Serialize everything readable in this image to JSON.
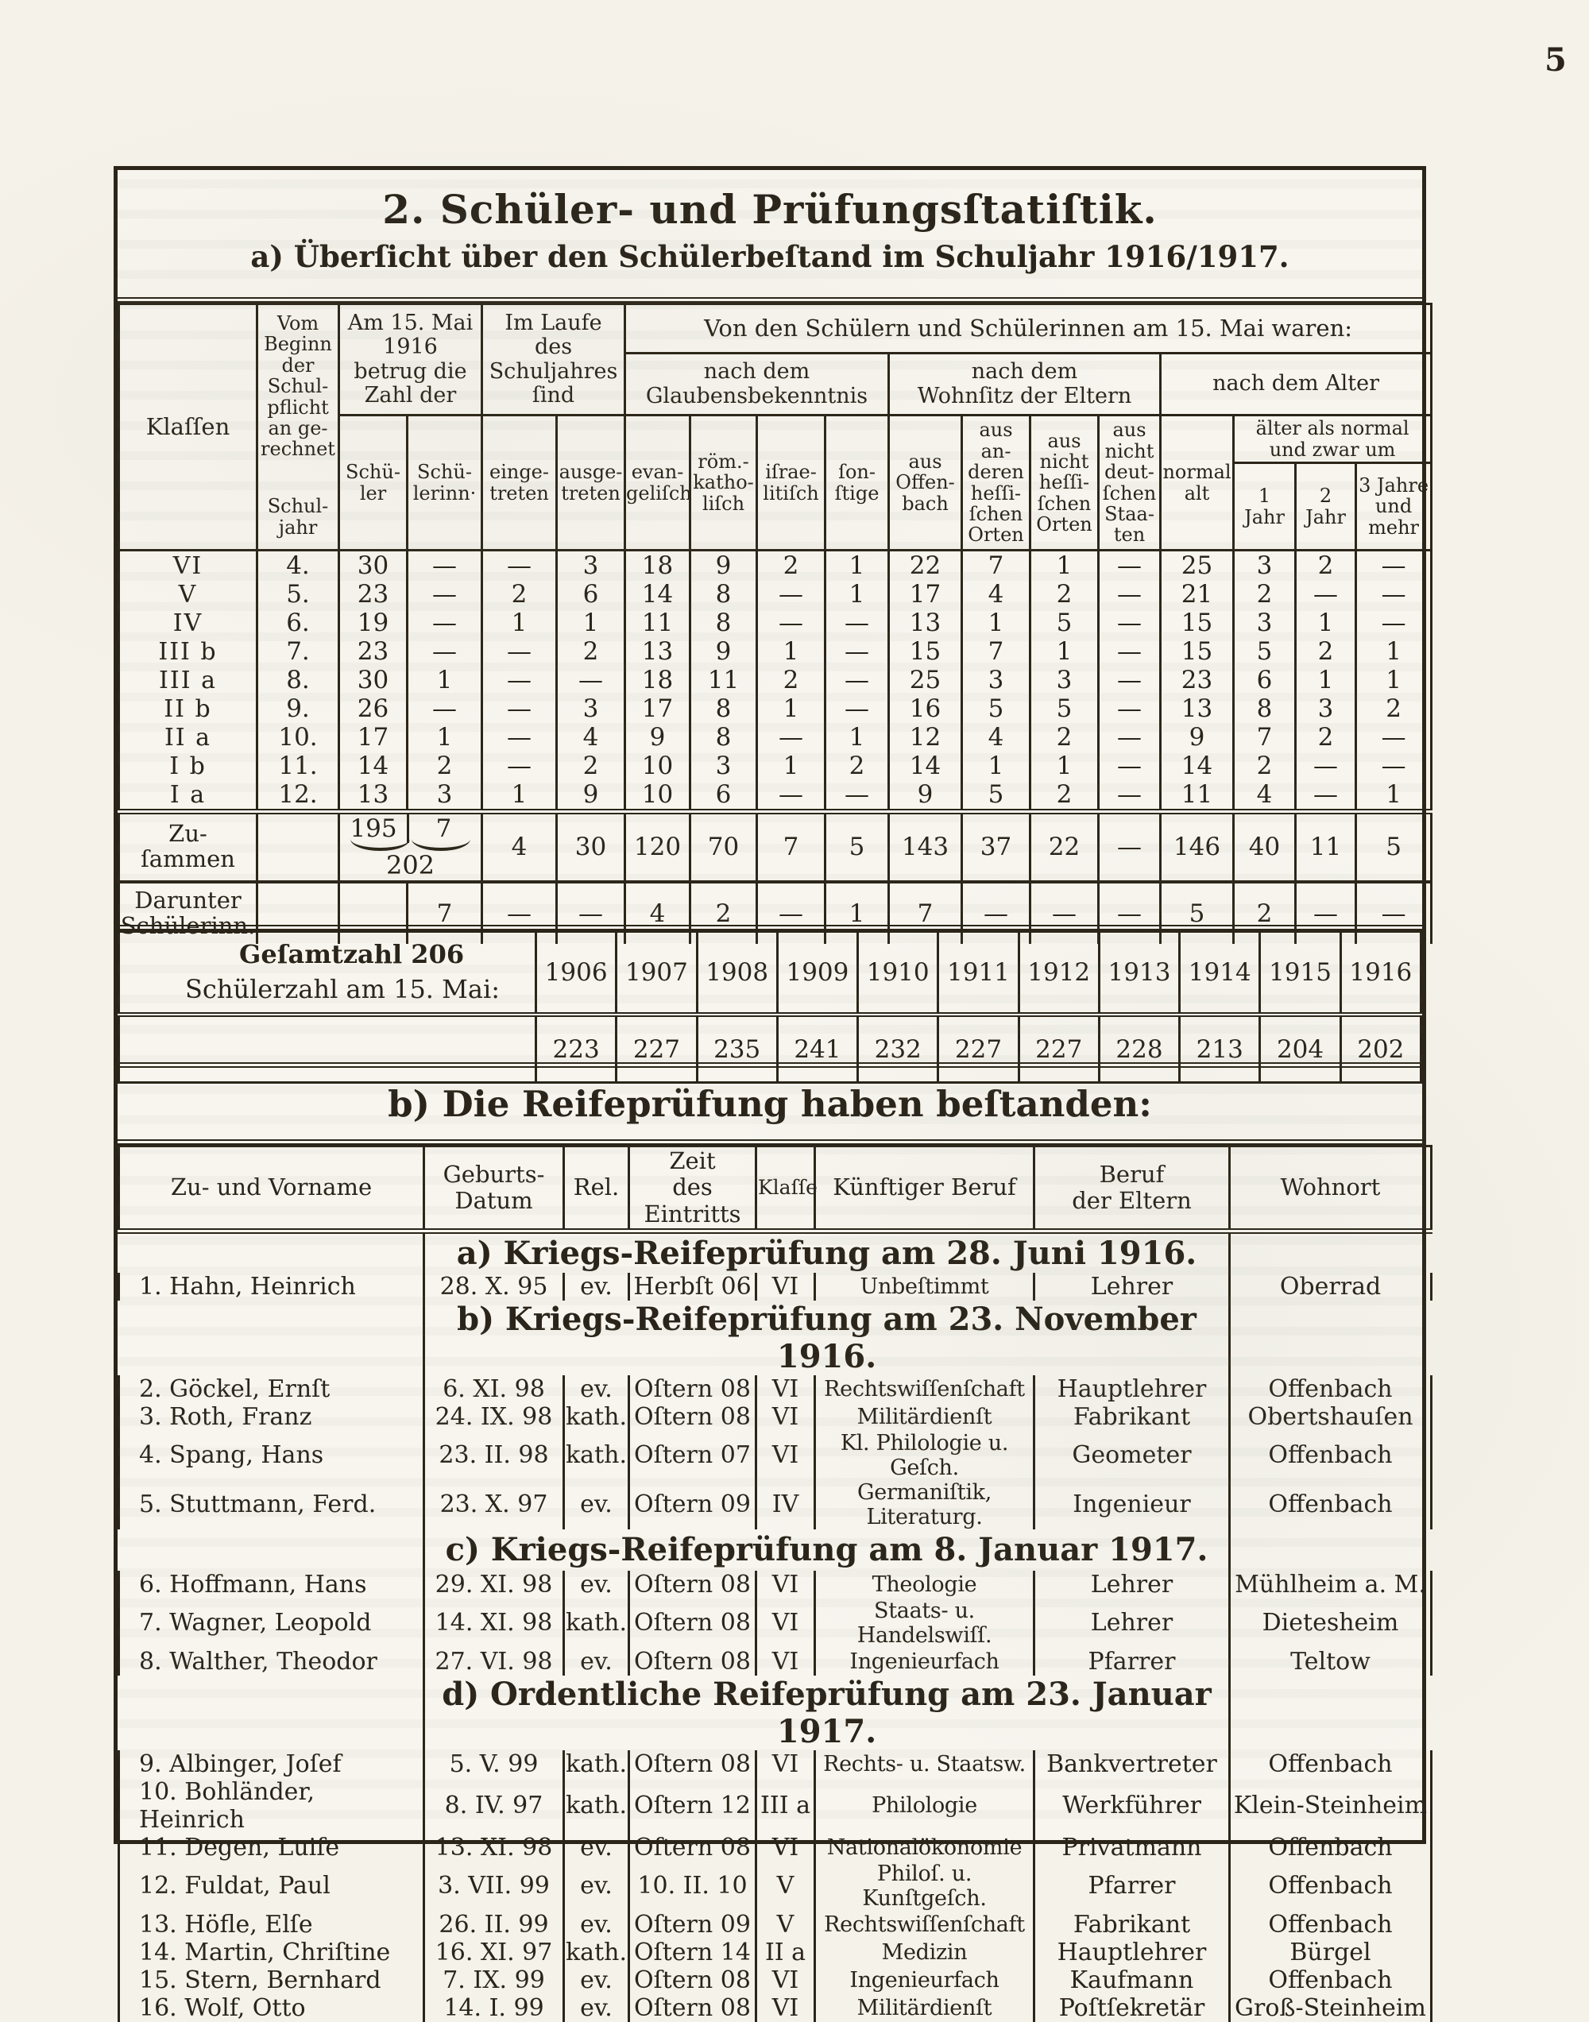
{
  "colors": {
    "ink": "#2b2519",
    "paper": "#f5f2e9"
  },
  "page_number": "5",
  "title_block": {
    "title": "2. Schüler- und Prüfungsſtatiſtik.",
    "subtitle": "a) Überſicht über den Schülerbeſtand im Schuljahr 1916/1917."
  },
  "stats_table": {
    "header": {
      "klassen": "Klaſſen",
      "vom_beginn": "Vom\nBeginn\nder\nSchul-\npflicht\nan ge-\nrechnet",
      "schuljahr": "Schul-\njahr",
      "am_15_mai": "Am 15. Mai\n1916\nbetrug die\nZahl der",
      "schueler": "Schü-\nler",
      "schuelerinnen": "Schü-\nlerinn·",
      "im_laufe": "Im Laufe\ndes\nSchuljahres\nſind",
      "eingetreten": "einge-\ntreten",
      "ausgetreten": "ausge-\ntreten",
      "von_den": "Von den Schülern und Schülerinnen am 15. Mai waren:",
      "nach_glauben": "nach dem\nGlaubensbekenntnis",
      "nach_wohnsitz": "nach dem\nWohnſitz der Eltern",
      "nach_alter": "nach dem Alter",
      "evangelisch": "evan-\ngeliſch",
      "katholisch": "röm.-\nkatho-\nliſch",
      "israelitisch": "iſrae-\nlitiſch",
      "sonstige": "ſon-\nſtige",
      "offenbach": "aus\nOffen-\nbach",
      "andere_hess": "aus\nan-\nderen\nheſſi-\nſchen\nOrten",
      "nicht_hess": "aus\nnicht\nheſſi-\nſchen\nOrten",
      "nicht_deutsch": "aus\nnicht\ndeut-\nſchen\nStaa-\nten",
      "normal_alt": "normal\nalt",
      "aelter": "älter als normal\nund zwar um",
      "jahr1": "1\nJahr",
      "jahr2": "2\nJahr",
      "jahr3": "3 Jahre\nund\nmehr"
    },
    "rows": [
      [
        "VI",
        "4.",
        "30",
        "—",
        "—",
        "3",
        "18",
        "9",
        "2",
        "1",
        "22",
        "7",
        "1",
        "—",
        "25",
        "3",
        "2",
        "—"
      ],
      [
        "V",
        "5.",
        "23",
        "—",
        "2",
        "6",
        "14",
        "8",
        "—",
        "1",
        "17",
        "4",
        "2",
        "—",
        "21",
        "2",
        "—",
        "—"
      ],
      [
        "IV",
        "6.",
        "19",
        "—",
        "1",
        "1",
        "11",
        "8",
        "—",
        "—",
        "13",
        "1",
        "5",
        "—",
        "15",
        "3",
        "1",
        "—"
      ],
      [
        "III b",
        "7.",
        "23",
        "—",
        "—",
        "2",
        "13",
        "9",
        "1",
        "—",
        "15",
        "7",
        "1",
        "—",
        "15",
        "5",
        "2",
        "1"
      ],
      [
        "III a",
        "8.",
        "30",
        "1",
        "—",
        "—",
        "18",
        "11",
        "2",
        "—",
        "25",
        "3",
        "3",
        "—",
        "23",
        "6",
        "1",
        "1"
      ],
      [
        "II b",
        "9.",
        "26",
        "—",
        "—",
        "3",
        "17",
        "8",
        "1",
        "—",
        "16",
        "5",
        "5",
        "—",
        "13",
        "8",
        "3",
        "2"
      ],
      [
        "II a",
        "10.",
        "17",
        "1",
        "—",
        "4",
        "9",
        "8",
        "—",
        "1",
        "12",
        "4",
        "2",
        "—",
        "9",
        "7",
        "2",
        "—"
      ],
      [
        "I b",
        "11.",
        "14",
        "2",
        "—",
        "2",
        "10",
        "3",
        "1",
        "2",
        "14",
        "1",
        "1",
        "—",
        "14",
        "2",
        "—",
        "—"
      ],
      [
        "I a",
        "12.",
        "13",
        "3",
        "1",
        "9",
        "10",
        "6",
        "—",
        "—",
        "9",
        "5",
        "2",
        "—",
        "11",
        "4",
        "—",
        "1"
      ]
    ],
    "zusammen": {
      "label": "Zu-\nſammen",
      "schueler": "195",
      "schuelerinnen": "7",
      "total": "202",
      "values": [
        "4",
        "30",
        "120",
        "70",
        "7",
        "5",
        "143",
        "37",
        "22",
        "—",
        "146",
        "40",
        "11",
        "5"
      ]
    },
    "darunter": {
      "label": "Darunter\nSchülerinn.",
      "schuelerinnen": "7",
      "values": [
        "—",
        "—",
        "4",
        "2",
        "—",
        "1",
        "7",
        "—",
        "—",
        "—",
        "5",
        "2",
        "—",
        "—"
      ]
    }
  },
  "gesamt_block": {
    "label_line1": "Geſamtzahl 206",
    "label_line2": "Schülerzahl am 15. Mai:",
    "years": [
      "1906",
      "1907",
      "1908",
      "1909",
      "1910",
      "1911",
      "1912",
      "1913",
      "1914",
      "1915",
      "1916"
    ],
    "values": [
      "223",
      "227",
      "235",
      "241",
      "232",
      "227",
      "227",
      "228",
      "213",
      "204",
      "202"
    ]
  },
  "reife_table": {
    "heading": "b) Die Reifeprüfung haben beſtanden:",
    "columns": {
      "name": "Zu- und Vorname",
      "geburtsdatum": "Geburts-\nDatum",
      "religion": "Rel.",
      "eintritt": "Zeit\ndes Eintritts",
      "klasse": "Klaſſe",
      "beruf": "Künftiger Beruf",
      "eltern": "Beruf\nder Eltern",
      "wohnort": "Wohnort"
    },
    "groups": [
      {
        "heading": "a) Kriegs-Reifeprüfung am 28. Juni 1916.",
        "rows": [
          [
            "1. Hahn, Heinrich",
            "28. X. 95",
            "ev.",
            "Herbſt 06",
            "VI",
            "Unbeſtimmt",
            "Lehrer",
            "Oberrad"
          ]
        ]
      },
      {
        "heading": "b) Kriegs-Reifeprüfung am 23. November 1916.",
        "rows": [
          [
            "2. Göckel, Ernſt",
            "6. XI. 98",
            "ev.",
            "Oſtern 08",
            "VI",
            "Rechtswiſſenſchaft",
            "Hauptlehrer",
            "Offenbach"
          ],
          [
            "3. Roth, Franz",
            "24. IX. 98",
            "kath.",
            "Oſtern 08",
            "VI",
            "Militärdienſt",
            "Fabrikant",
            "Obertshauſen"
          ],
          [
            "4. Spang, Hans",
            "23. II. 98",
            "kath.",
            "Oſtern 07",
            "VI",
            "Kl. Philologie u. Geſch.",
            "Geometer",
            "Offenbach"
          ],
          [
            "5. Stuttmann, Ferd.",
            "23. X. 97",
            "ev.",
            "Oſtern 09",
            "IV",
            "Germaniſtik, Literaturg.",
            "Ingenieur",
            "Offenbach"
          ]
        ]
      },
      {
        "heading": "c) Kriegs-Reifeprüfung am 8. Januar 1917.",
        "rows": [
          [
            "6. Hoffmann, Hans",
            "29. XI. 98",
            "ev.",
            "Oſtern 08",
            "VI",
            "Theologie",
            "Lehrer",
            "Mühlheim a. M."
          ],
          [
            "7. Wagner, Leopold",
            "14. XI. 98",
            "kath.",
            "Oſtern 08",
            "VI",
            "Staats- u. Handelswiſſ.",
            "Lehrer",
            "Dietesheim"
          ],
          [
            "8. Walther, Theodor",
            "27. VI. 98",
            "ev.",
            "Oſtern 08",
            "VI",
            "Ingenieurfach",
            "Pfarrer",
            "Teltow"
          ]
        ]
      },
      {
        "heading": "d) Ordentliche Reifeprüfung am 23. Januar 1917.",
        "rows": [
          [
            "9. Albinger, Joſef",
            "5. V. 99",
            "kath.",
            "Oſtern 08",
            "VI",
            "Rechts- u. Staatsw.",
            "Bankvertreter",
            "Offenbach"
          ],
          [
            "10. Bohländer, Heinrich",
            "8. IV. 97",
            "kath.",
            "Oſtern 12",
            "III a",
            "Philologie",
            "Werkführer",
            "Klein-Steinheim"
          ],
          [
            "11. Degen, Luiſe",
            "13. XI. 98",
            "ev.",
            "Oſtern 08",
            "VI",
            "Nationalökonomie",
            "Privatmann",
            "Offenbach"
          ],
          [
            "12. Fuldat, Paul",
            "3. VII. 99",
            "ev.",
            "10. II. 10",
            "V",
            "Philoſ. u. Kunſtgeſch.",
            "Pfarrer",
            "Offenbach"
          ],
          [
            "13. Höfle, Elſe",
            "26. II. 99",
            "ev.",
            "Oſtern 09",
            "V",
            "Rechtswiſſenſchaft",
            "Fabrikant",
            "Offenbach"
          ],
          [
            "14. Martin, Chriſtine",
            "16. XI. 97",
            "kath.",
            "Oſtern 14",
            "II a",
            "Medizin",
            "Hauptlehrer",
            "Bürgel"
          ],
          [
            "15. Stern, Bernhard",
            "7. IX. 99",
            "ev.",
            "Oſtern 08",
            "VI",
            "Ingenieurfach",
            "Kaufmann",
            "Offenbach"
          ],
          [
            "16. Wolf, Otto",
            "14. I. 99",
            "ev.",
            "Oſtern 08",
            "VI",
            "Militärdienſt",
            "Poſtſekretär",
            "Groß-Steinheim"
          ]
        ]
      }
    ]
  }
}
